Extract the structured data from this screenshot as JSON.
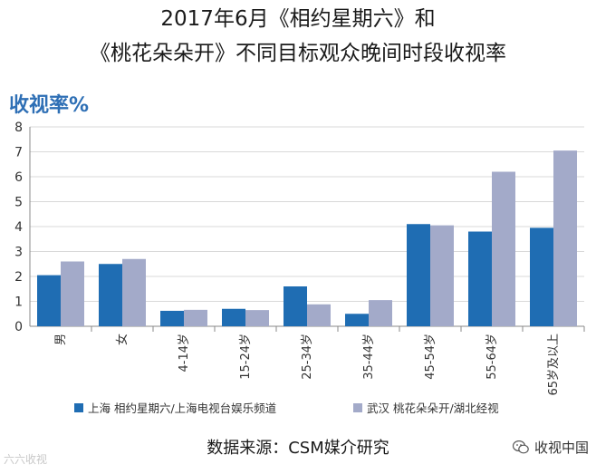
{
  "title_line1": "2017年6月《相约星期六》和",
  "title_line2": "《桃花朵朵开》不同目标观众晚间时段收视率",
  "source": "数据来源：CSM媒介研究",
  "watermark_left": "六六收视",
  "watermark_right": "收视中国",
  "colors": {
    "series1": "#1f6db3",
    "series2": "#a3aac9",
    "axis": "#888888",
    "grid": "#d9d9d9"
  },
  "chart_data": {
    "type": "bar",
    "ylabel": "收视率%",
    "xlabel": "",
    "ylim": [
      0,
      8
    ],
    "yticks": [
      0,
      1,
      2,
      3,
      4,
      5,
      6,
      7,
      8
    ],
    "categories": [
      "男",
      "女",
      "4-14岁",
      "15-24岁",
      "25-34岁",
      "35-44岁",
      "45-54岁",
      "55-64岁",
      "65岁及以上"
    ],
    "series": [
      {
        "name": "上海 相约星期六/上海电视台娱乐频道",
        "values": [
          2.05,
          2.5,
          0.62,
          0.7,
          1.6,
          0.5,
          4.1,
          3.8,
          3.95
        ]
      },
      {
        "name": "武汉 桃花朵朵开/湖北经视",
        "values": [
          2.6,
          2.7,
          0.66,
          0.65,
          0.88,
          1.05,
          4.05,
          6.2,
          7.05
        ]
      }
    ]
  }
}
